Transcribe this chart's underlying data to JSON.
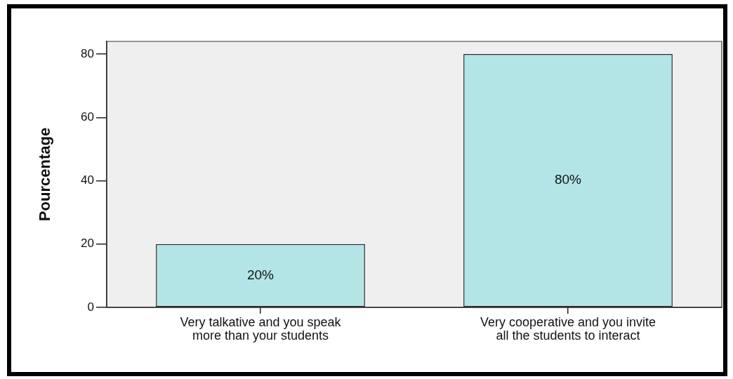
{
  "chart_data": {
    "type": "bar",
    "ylabel": "Pourcentage",
    "categories": [
      "Very talkative and you speak more than your students",
      "Very cooperative and you invite all the students to interact"
    ],
    "values": [
      20,
      80
    ],
    "color": "#b3e5e6",
    "value_labels": [
      "20%",
      "80%"
    ],
    "ylim": [
      0,
      84
    ],
    "yticks": [
      0,
      20,
      40,
      60,
      80
    ]
  }
}
